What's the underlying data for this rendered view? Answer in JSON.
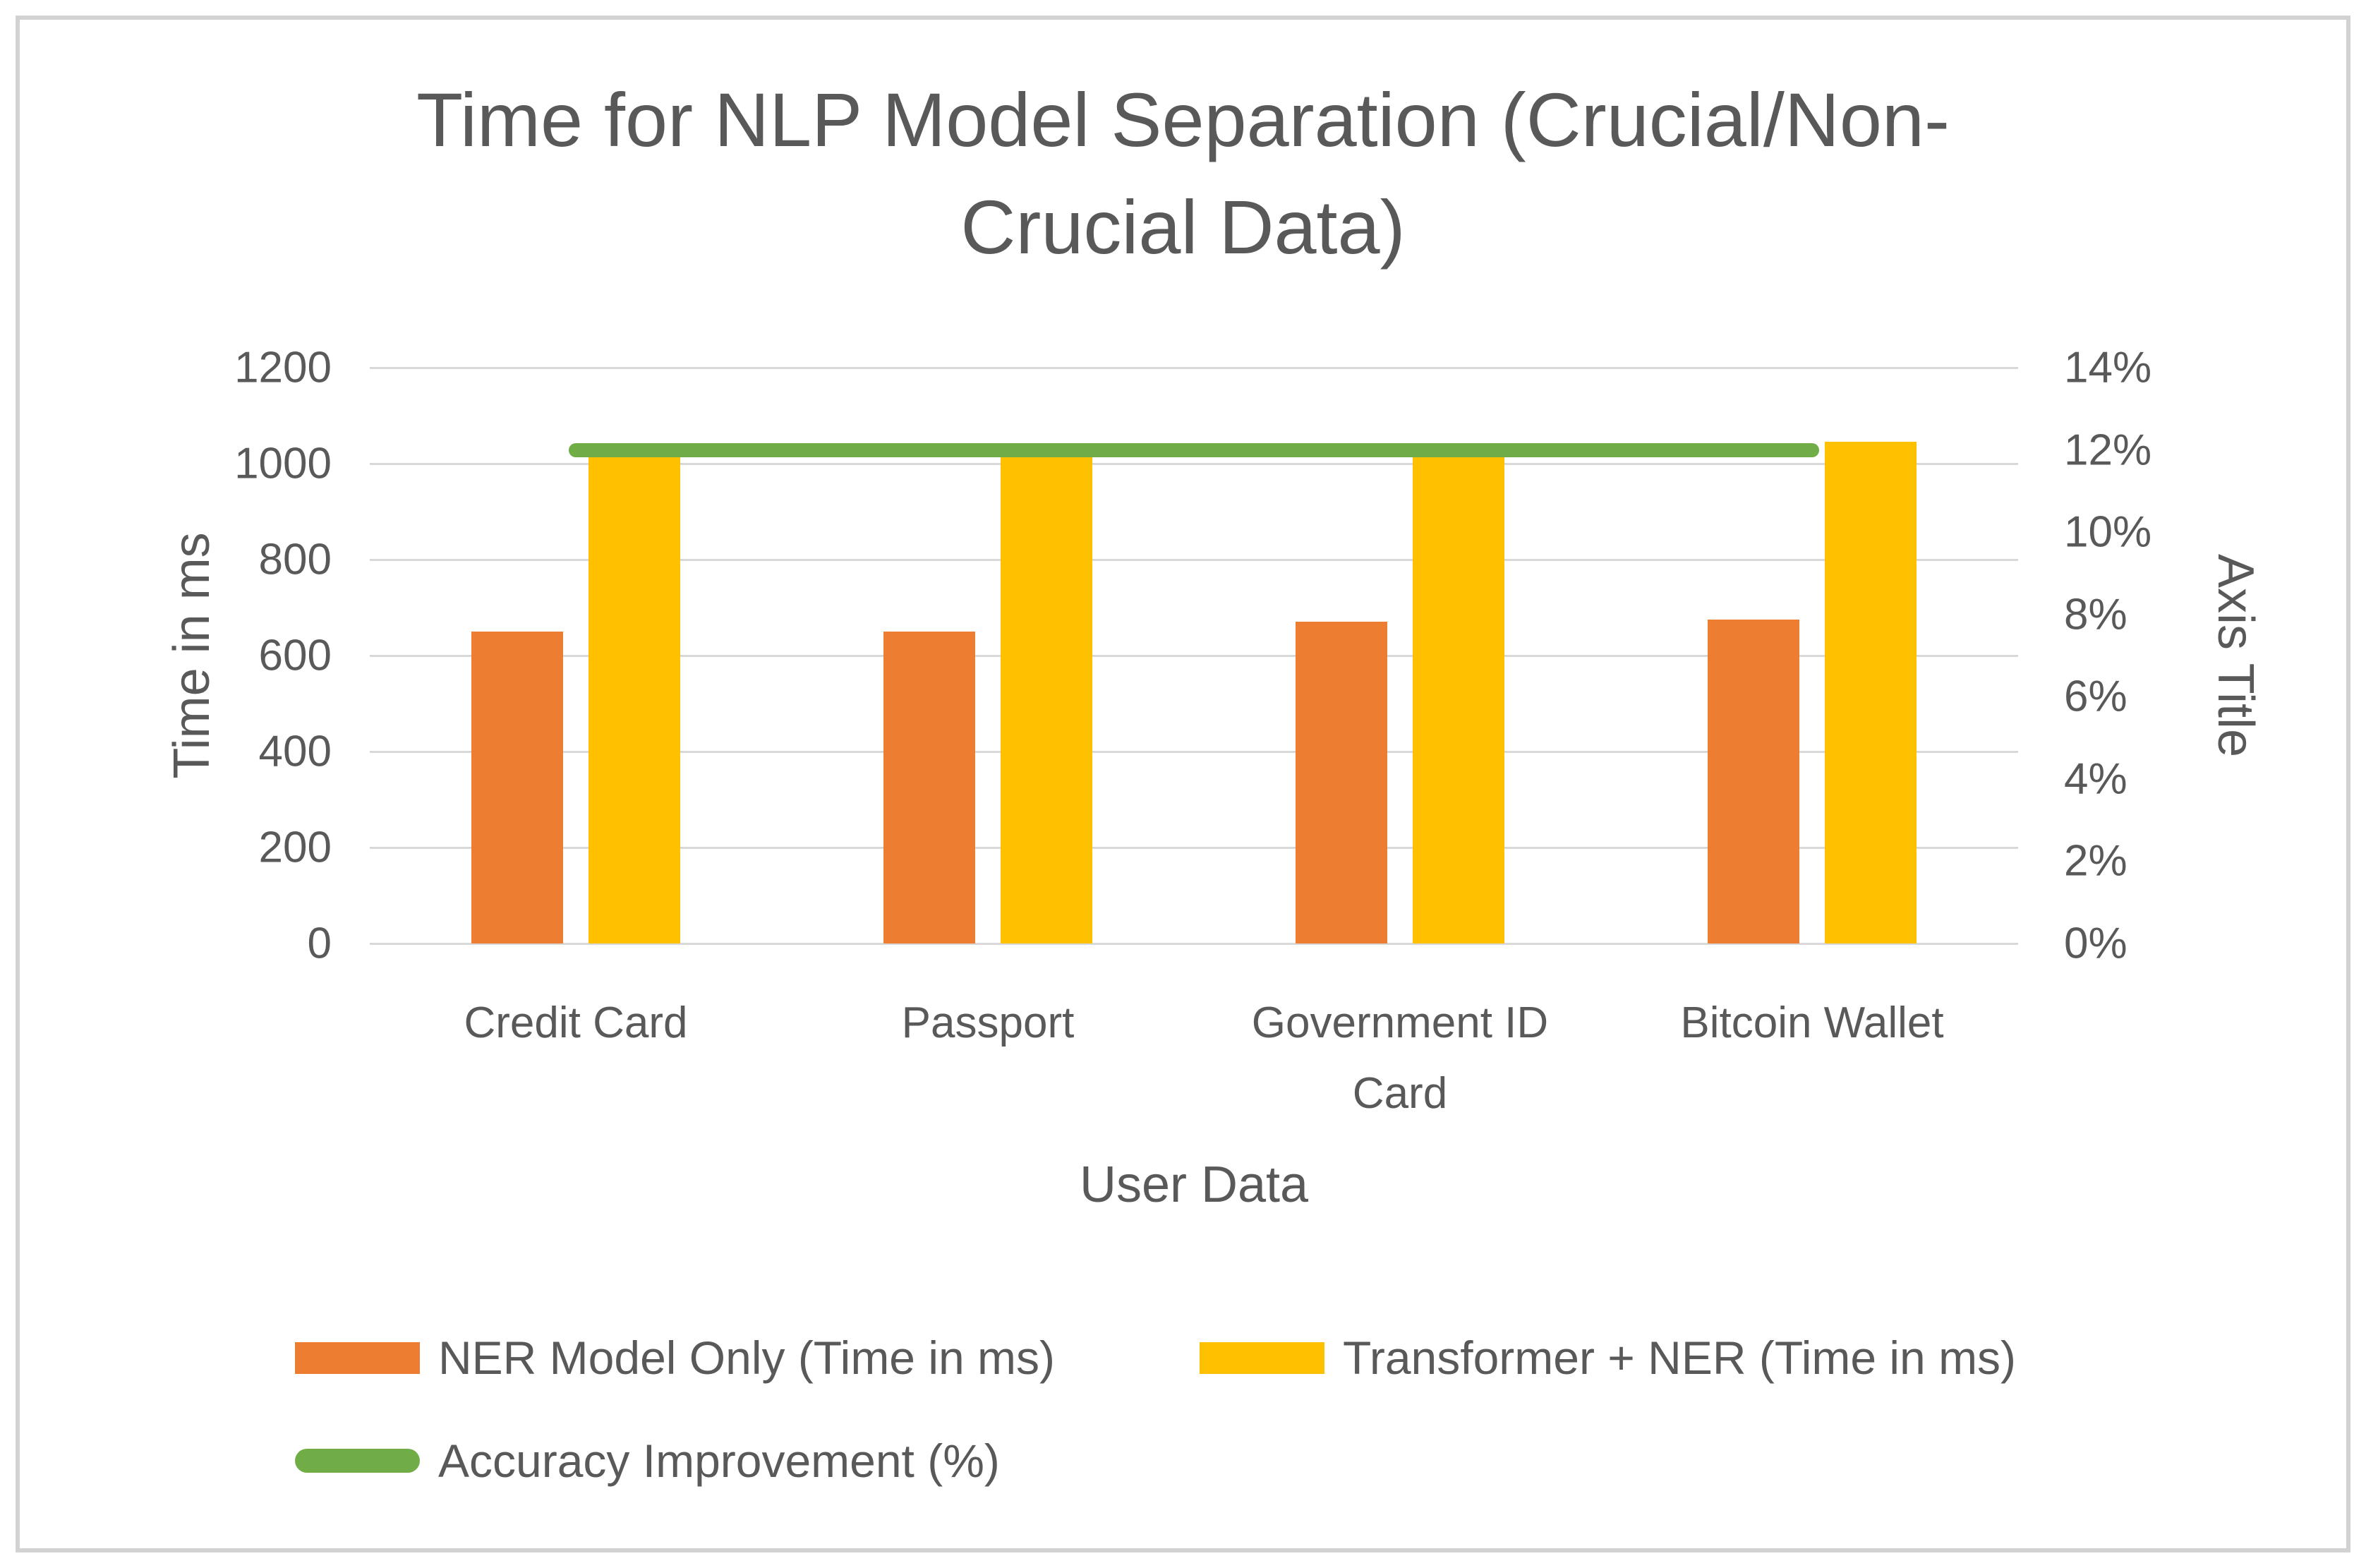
{
  "title": {
    "line1": "Time for NLP Model Separation (Crucial/Non-",
    "line2": "Crucial Data)"
  },
  "chart_data": {
    "type": "bar",
    "title": "Time for NLP Model Separation (Crucial/Non-Crucial Data)",
    "categories": [
      "Credit Card",
      "Passport",
      "Government ID Card",
      "Bitcoin Wallet"
    ],
    "series": [
      {
        "name": "NER Model Only (Time in ms)",
        "type": "bar",
        "axis": "left",
        "color": "#ED7D31",
        "values": [
          650,
          650,
          670,
          675
        ]
      },
      {
        "name": "Transformer + NER (Time in ms)",
        "type": "bar",
        "axis": "left",
        "color": "#FFC000",
        "values": [
          1015,
          1015,
          1015,
          1045
        ]
      },
      {
        "name": "Accuracy Improvement (%)",
        "type": "line",
        "axis": "right",
        "color": "#70AD47",
        "values": [
          12,
          12,
          12,
          12
        ],
        "unit": "%"
      }
    ],
    "x_axis": {
      "title": "User Data"
    },
    "left_axis": {
      "title": "Time in ms",
      "min": 0,
      "max": 1200,
      "step": 200,
      "tick_labels": [
        "1200",
        "1000",
        "800",
        "600",
        "400",
        "200",
        "0"
      ]
    },
    "right_axis": {
      "title": "Axis Title",
      "min": 0,
      "max": 14,
      "step": 2,
      "tick_labels": [
        "14%",
        "12%",
        "10%",
        "8%",
        "6%",
        "4%",
        "2%",
        "0%"
      ]
    },
    "grid": true,
    "legend_position": "bottom-left",
    "colors": {
      "gridline": "#D9D9D9",
      "text": "#595959",
      "frame": "#D2D2D2",
      "background": "#FFFFFF",
      "bar_series_1": "#ED7D31",
      "bar_series_2": "#FFC000",
      "line_series": "#70AD47"
    }
  }
}
